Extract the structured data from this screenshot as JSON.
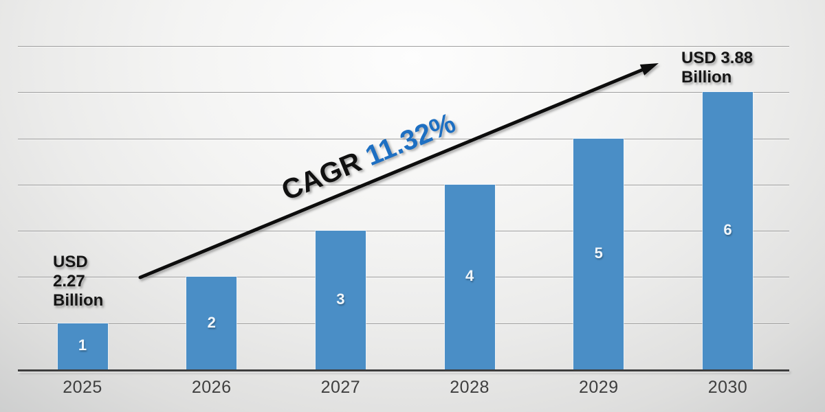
{
  "chart_data": {
    "type": "bar",
    "title": "",
    "xlabel": "",
    "ylabel": "",
    "categories": [
      "2025",
      "2026",
      "2027",
      "2028",
      "2029",
      "2030"
    ],
    "values": [
      1,
      2,
      3,
      4,
      5,
      6
    ],
    "bar_labels": [
      "1",
      "2",
      "3",
      "4",
      "5",
      "6"
    ],
    "ylim": [
      0,
      7
    ],
    "grid": true,
    "legend": "none",
    "colors": {
      "bar": "#4A8EC6",
      "bar_label": "#F2F7FB",
      "gridline": "#8f8f8f",
      "axis": "#3d3d3d",
      "annotation_text": "#151515",
      "cagr_value": "#1D6FC2",
      "arrow": "#0d0d0d"
    },
    "annotations": {
      "start_value_lines": [
        "USD",
        "2.27",
        "Billion"
      ],
      "end_value_lines": [
        "USD 3.88",
        "Billion"
      ],
      "cagr_prefix": "CAGR ",
      "cagr_value": "11.32%"
    }
  }
}
